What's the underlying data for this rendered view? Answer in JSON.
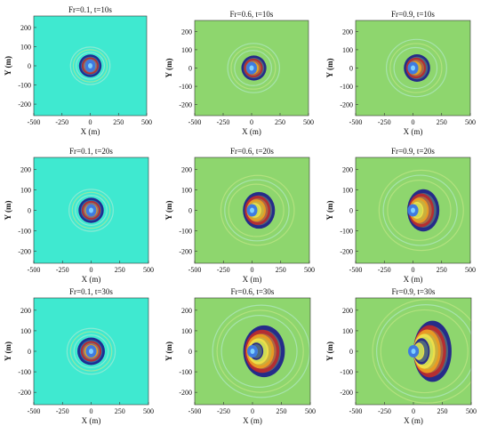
{
  "chart_data": [
    {
      "type": "heatmap",
      "title": "Fr=0.1, t=10s",
      "froude": 0.1,
      "time_s": 10,
      "xlabel": "X (m)",
      "ylabel": "Y (m)",
      "xticks": [
        -500,
        -250,
        0,
        250,
        500
      ],
      "yticks": [
        200,
        100,
        0,
        -100,
        -200
      ],
      "xlim": [
        -500,
        500
      ],
      "ylim": [
        -260,
        260
      ],
      "wave_center_x": 0,
      "rings": 4,
      "wave_extent_x": [
        -100,
        100
      ]
    },
    {
      "type": "heatmap",
      "title": "Fr=0.6, t=10s",
      "froude": 0.6,
      "time_s": 10,
      "xlabel": "X (m)",
      "ylabel": "Y (m)",
      "xticks": [
        -500,
        -250,
        0,
        250,
        500
      ],
      "yticks": [
        200,
        100,
        0,
        -100,
        -200
      ],
      "xlim": [
        -500,
        500
      ],
      "ylim": [
        -260,
        260
      ],
      "wave_center_x": 0,
      "rings": 4,
      "wave_extent_x": [
        -90,
        130
      ]
    },
    {
      "type": "heatmap",
      "title": "Fr=0.9, t=10s",
      "froude": 0.9,
      "time_s": 10,
      "xlabel": "X (m)",
      "ylabel": "Y (m)",
      "xticks": [
        -500,
        -250,
        0,
        250,
        500
      ],
      "yticks": [
        200,
        100,
        0,
        -100,
        -200
      ],
      "xlim": [
        -500,
        500
      ],
      "ylim": [
        -260,
        260
      ],
      "wave_center_x": 0,
      "rings": 4,
      "wave_extent_x": [
        -80,
        150
      ]
    },
    {
      "type": "heatmap",
      "title": "Fr=0.1, t=20s",
      "froude": 0.1,
      "time_s": 20,
      "xlabel": "X (m)",
      "ylabel": "Y (m)",
      "xticks": [
        -500,
        -250,
        0,
        250,
        500
      ],
      "yticks": [
        200,
        100,
        0,
        -100,
        -200
      ],
      "xlim": [
        -500,
        500
      ],
      "ylim": [
        -260,
        260
      ],
      "wave_center_x": 0,
      "rings": 4,
      "wave_extent_x": [
        -110,
        110
      ]
    },
    {
      "type": "heatmap",
      "title": "Fr=0.6, t=20s",
      "froude": 0.6,
      "time_s": 20,
      "xlabel": "X (m)",
      "ylabel": "Y (m)",
      "xticks": [
        -500,
        -250,
        0,
        250,
        500
      ],
      "yticks": [
        200,
        100,
        0,
        -100,
        -200
      ],
      "xlim": [
        -500,
        500
      ],
      "ylim": [
        -260,
        260
      ],
      "wave_center_x": 0,
      "rings": 5,
      "wave_extent_x": [
        -80,
        200
      ]
    },
    {
      "type": "heatmap",
      "title": "Fr=0.9, t=20s",
      "froude": 0.9,
      "time_s": 20,
      "xlabel": "X (m)",
      "ylabel": "Y (m)",
      "xticks": [
        -500,
        -250,
        0,
        250,
        500
      ],
      "yticks": [
        200,
        100,
        0,
        -100,
        -200
      ],
      "xlim": [
        -500,
        500
      ],
      "ylim": [
        -260,
        260
      ],
      "wave_center_x": 0,
      "rings": 5,
      "wave_extent_x": [
        -50,
        230
      ]
    },
    {
      "type": "heatmap",
      "title": "Fr=0.1, t=30s",
      "froude": 0.1,
      "time_s": 30,
      "xlabel": "X (m)",
      "ylabel": "Y (m)",
      "xticks": [
        -500,
        -250,
        0,
        250,
        500
      ],
      "yticks": [
        200,
        100,
        0,
        -100,
        -200
      ],
      "xlim": [
        -500,
        500
      ],
      "ylim": [
        -260,
        260
      ],
      "wave_center_x": 0,
      "rings": 4,
      "wave_extent_x": [
        -120,
        120
      ]
    },
    {
      "type": "heatmap",
      "title": "Fr=0.6, t=30s",
      "froude": 0.6,
      "time_s": 30,
      "xlabel": "X (m)",
      "ylabel": "Y (m)",
      "xticks": [
        -500,
        -250,
        0,
        250,
        500
      ],
      "yticks": [
        200,
        100,
        0,
        -100,
        -200
      ],
      "xlim": [
        -500,
        500
      ],
      "ylim": [
        -260,
        260
      ],
      "wave_center_x": 0,
      "rings": 6,
      "wave_extent_x": [
        -80,
        280
      ]
    },
    {
      "type": "heatmap",
      "title": "Fr=0.9, t=30s",
      "froude": 0.9,
      "time_s": 30,
      "xlabel": "X (m)",
      "ylabel": "Y (m)",
      "xticks": [
        -500,
        -250,
        0,
        250,
        500
      ],
      "yticks": [
        200,
        100,
        0,
        -100,
        -200
      ],
      "xlim": [
        -500,
        500
      ],
      "ylim": [
        -260,
        260
      ],
      "wave_center_x": 0,
      "rings": 7,
      "wave_extent_x": [
        0,
        330
      ]
    }
  ],
  "colors": {
    "background_low_fr": "#3fe9d0",
    "background_high_fr": "#8ed66e",
    "crest_dark": "#1a1a8c",
    "trough_red": "#c0282a",
    "ring_orange": "#f0a020",
    "ring_yellow": "#f2e34a",
    "center_blue": "#3f7be0"
  }
}
